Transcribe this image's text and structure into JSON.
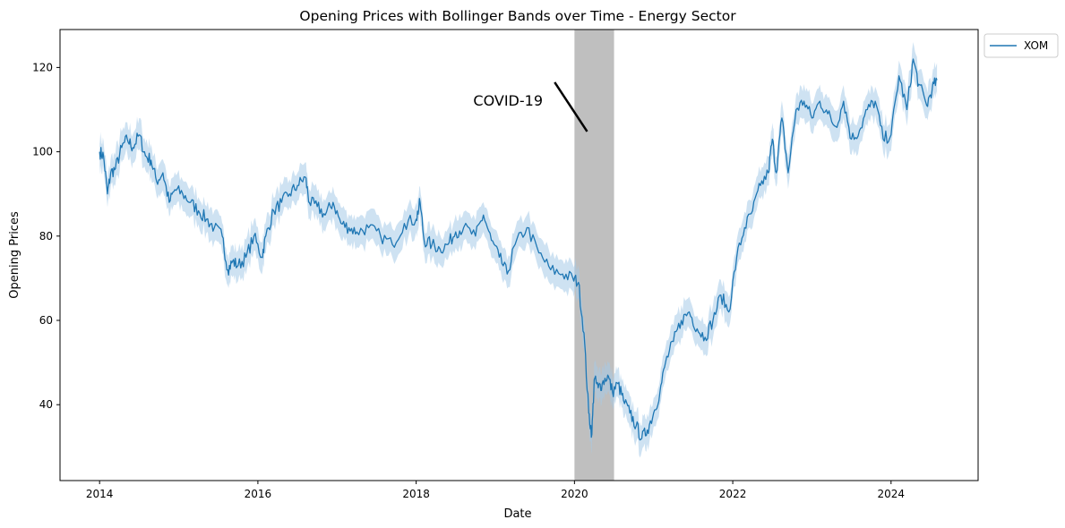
{
  "chart_data": {
    "type": "line",
    "title": "Opening Prices with Bollinger Bands over Time - Energy Sector",
    "xlabel": "Date",
    "ylabel": "Opening Prices",
    "xlim": [
      2013.5,
      2025.1
    ],
    "ylim": [
      22,
      129
    ],
    "x_ticks": [
      2014,
      2016,
      2018,
      2020,
      2022,
      2024
    ],
    "x_tick_labels": [
      "2014",
      "2016",
      "2018",
      "2020",
      "2022",
      "2024"
    ],
    "y_ticks": [
      40,
      60,
      80,
      100,
      120
    ],
    "y_tick_labels": [
      "40",
      "60",
      "80",
      "100",
      "120"
    ],
    "grid": false,
    "legend_position": "outside-top-right",
    "colors": {
      "line": "#1f77b4",
      "band": "#a6cbe8",
      "shade": "#7f7f7f",
      "arrow": "#000000"
    },
    "shaded_region": {
      "x_start": 2020.0,
      "x_end": 2020.5
    },
    "annotation": {
      "text": "COVID-19",
      "text_x": 2019.6,
      "text_y": 111,
      "arrow_from": [
        2019.75,
        116.5
      ],
      "arrow_to": [
        2020.16,
        104.8
      ]
    },
    "band_width": 3.0,
    "series": [
      {
        "name": "XOM",
        "x": [
          2014.0,
          2014.05,
          2014.1,
          2014.14,
          2014.2,
          2014.28,
          2014.35,
          2014.42,
          2014.5,
          2014.58,
          2014.65,
          2014.72,
          2014.8,
          2014.88,
          2014.95,
          2015.05,
          2015.15,
          2015.25,
          2015.35,
          2015.45,
          2015.55,
          2015.62,
          2015.68,
          2015.75,
          2015.85,
          2015.95,
          2016.05,
          2016.1,
          2016.2,
          2016.3,
          2016.4,
          2016.5,
          2016.6,
          2016.65,
          2016.75,
          2016.85,
          2016.95,
          2017.05,
          2017.15,
          2017.25,
          2017.4,
          2017.55,
          2017.7,
          2017.85,
          2018.0,
          2018.05,
          2018.1,
          2018.2,
          2018.3,
          2018.4,
          2018.5,
          2018.6,
          2018.75,
          2018.85,
          2018.95,
          2019.05,
          2019.15,
          2019.25,
          2019.4,
          2019.55,
          2019.7,
          2019.85,
          2019.98,
          2020.05,
          2020.12,
          2020.18,
          2020.22,
          2020.25,
          2020.3,
          2020.35,
          2020.42,
          2020.48,
          2020.55,
          2020.62,
          2020.7,
          2020.78,
          2020.85,
          2020.92,
          2021.0,
          2021.08,
          2021.15,
          2021.25,
          2021.35,
          2021.45,
          2021.55,
          2021.65,
          2021.75,
          2021.85,
          2021.95,
          2022.05,
          2022.15,
          2022.25,
          2022.35,
          2022.45,
          2022.5,
          2022.55,
          2022.62,
          2022.7,
          2022.8,
          2022.9,
          2023.0,
          2023.1,
          2023.2,
          2023.3,
          2023.4,
          2023.5,
          2023.6,
          2023.7,
          2023.8,
          2023.9,
          2024.0,
          2024.1,
          2024.2,
          2024.28,
          2024.35,
          2024.45,
          2024.52,
          2024.58
        ],
        "values": [
          100,
          99,
          90,
          95,
          96,
          101,
          103,
          101,
          104,
          99,
          98,
          93,
          95,
          88,
          91,
          90,
          88,
          86,
          84,
          82,
          80,
          72,
          74,
          73,
          75,
          80,
          75,
          80,
          86,
          88,
          90,
          92,
          94,
          88,
          87,
          85,
          88,
          83,
          82,
          81,
          82,
          80,
          78,
          83,
          84,
          88,
          79,
          78,
          77,
          78,
          81,
          82,
          80,
          85,
          79,
          75,
          71,
          78,
          82,
          76,
          72,
          71,
          70,
          69,
          57,
          38,
          33,
          46,
          44,
          45,
          47,
          43,
          45,
          41,
          38,
          35,
          32,
          34,
          38,
          43,
          50,
          55,
          60,
          62,
          58,
          56,
          60,
          66,
          62,
          75,
          82,
          86,
          92,
          95,
          103,
          95,
          108,
          95,
          110,
          112,
          108,
          112,
          109,
          106,
          112,
          103,
          105,
          110,
          112,
          103,
          104,
          118,
          110,
          122,
          116,
          111,
          115,
          117
        ]
      }
    ]
  }
}
